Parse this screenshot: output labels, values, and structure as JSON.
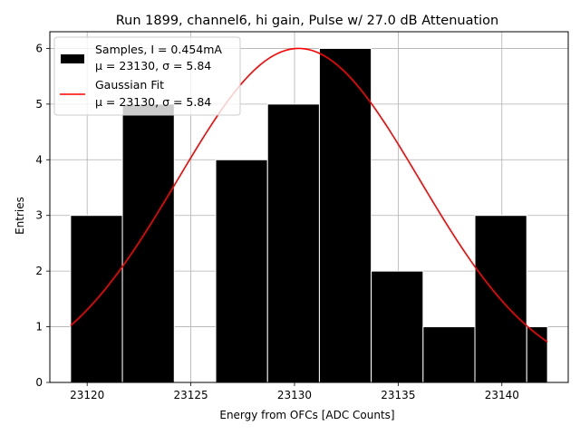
{
  "chart_data": {
    "type": "bar",
    "title": "Run 1899, channel6, hi gain, Pulse w/ 27.0 dB Attenuation",
    "xlabel": "Energy from OFCs [ADC Counts]",
    "ylabel": "Entries",
    "xlim": [
      23118.2,
      23143.2
    ],
    "ylim": [
      0,
      6.3
    ],
    "xticks": [
      23120,
      23125,
      23130,
      23135,
      23140
    ],
    "yticks": [
      0,
      1,
      2,
      3,
      4,
      5,
      6
    ],
    "grid": true,
    "legend_position": "upper-left",
    "histogram": {
      "name": "Samples, I = 0.454mA",
      "stats": "μ = 23130, σ = 5.84",
      "color": "#000000",
      "bins": [
        {
          "x0": 23119.2,
          "x1": 23121.7,
          "count": 3
        },
        {
          "x0": 23121.7,
          "x1": 23124.2,
          "count": 5
        },
        {
          "x0": 23124.2,
          "x1": 23126.2,
          "count": 0
        },
        {
          "x0": 23126.2,
          "x1": 23128.7,
          "count": 4
        },
        {
          "x0": 23128.7,
          "x1": 23131.2,
          "count": 5
        },
        {
          "x0": 23131.2,
          "x1": 23133.7,
          "count": 6
        },
        {
          "x0": 23133.7,
          "x1": 23136.2,
          "count": 2
        },
        {
          "x0": 23136.2,
          "x1": 23138.7,
          "count": 1
        },
        {
          "x0": 23138.7,
          "x1": 23141.2,
          "count": 3
        },
        {
          "x0": 23141.2,
          "x1": 23142.2,
          "count": 1
        }
      ]
    },
    "fit": {
      "name": "Gaussian Fit",
      "stats": "μ = 23130, σ = 5.84",
      "color": "#ff0000",
      "mu": 23130.2,
      "sigma": 5.84,
      "amplitude": 6.0,
      "x_start": 23119.2,
      "x_end": 23142.2
    }
  }
}
